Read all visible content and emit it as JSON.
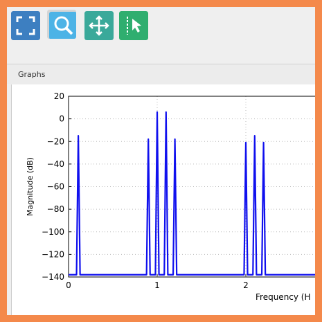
{
  "tab": "Graphs",
  "chart_data": {
    "type": "line",
    "ylabel": "Magnitude (dB)",
    "xlabel": "Frequency (H",
    "xlim": [
      0,
      3
    ],
    "ylim": [
      -140,
      20
    ],
    "xticks": [
      0,
      1,
      2
    ],
    "yticks": [
      20,
      0,
      {
        "value": -20,
        "label": "−20"
      },
      {
        "value": -40,
        "label": "−40"
      },
      {
        "value": -60,
        "label": "−60"
      },
      {
        "value": -80,
        "label": "−80"
      },
      {
        "value": -100,
        "label": "−100"
      },
      {
        "value": -120,
        "label": "−120"
      },
      {
        "value": -140,
        "label": "−140"
      }
    ],
    "grid": true,
    "series": [
      {
        "color": "#1010ee",
        "x": [
          0,
          0.09,
          0.11,
          0.13,
          0.88,
          0.9,
          0.92,
          0.98,
          1.0,
          1.02,
          1.08,
          1.1,
          1.12,
          1.18,
          1.2,
          1.22,
          1.98,
          2.0,
          2.02,
          2.08,
          2.1,
          2.12,
          2.18,
          2.2,
          2.22,
          3
        ],
        "values": [
          -138,
          -138,
          -15,
          -138,
          -138,
          -18,
          -138,
          -138,
          6,
          -138,
          -138,
          6,
          -138,
          -138,
          -18,
          -138,
          -138,
          -21,
          -138,
          -138,
          -15,
          -138,
          -138,
          -21,
          -138,
          -138
        ]
      }
    ]
  }
}
